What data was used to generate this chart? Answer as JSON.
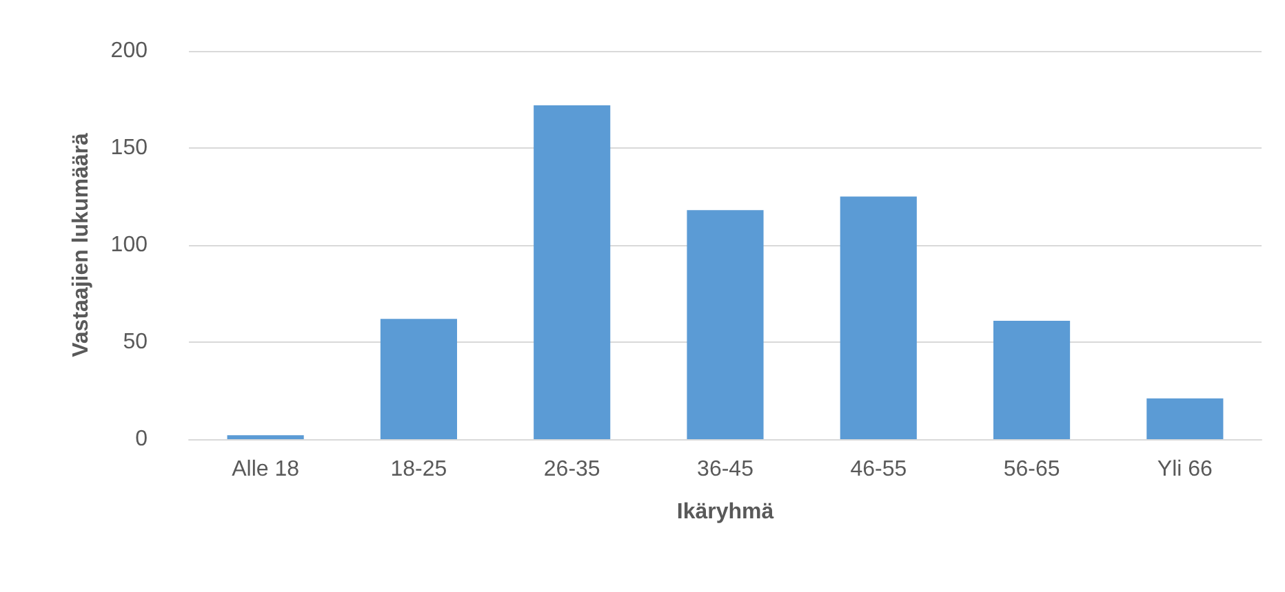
{
  "chart_data": {
    "type": "bar",
    "xlabel": "Ikäryhmä",
    "ylabel": "Vastaajien lukumäärä",
    "categories": [
      "Alle 18",
      "18-25",
      "26-35",
      "36-45",
      "46-55",
      "56-65",
      "Yli 66"
    ],
    "values": [
      2,
      62,
      172,
      118,
      125,
      61,
      21
    ],
    "color": "#5b9bd5",
    "ylim": [
      0,
      200
    ],
    "yticks": [
      0,
      50,
      100,
      150,
      200
    ],
    "grid": "y"
  }
}
